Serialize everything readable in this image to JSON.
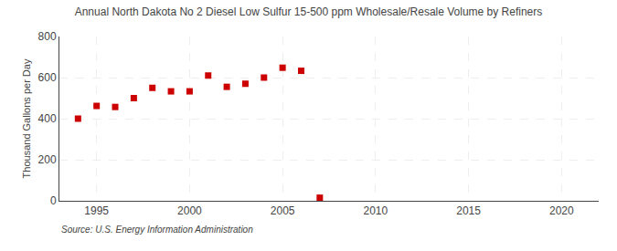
{
  "chart_data": {
    "type": "scatter",
    "title": "Annual North Dakota No 2 Diesel Low Sulfur 15-500 ppm Wholesale/Resale Volume by Refiners",
    "ylabel": "Thousand Gallons per Day",
    "x": [
      1994,
      1995,
      1996,
      1997,
      1998,
      1999,
      2000,
      2001,
      2002,
      2003,
      2004,
      2005,
      2006,
      2007
    ],
    "values": [
      400,
      462,
      457,
      500,
      550,
      533,
      533,
      610,
      555,
      570,
      600,
      648,
      633,
      15
    ],
    "color": "#cc0000",
    "marker": "square",
    "xlim": [
      1993,
      2022
    ],
    "ylim": [
      0,
      800
    ],
    "xticks": [
      1995,
      2000,
      2005,
      2010,
      2015,
      2020
    ],
    "yticks": [
      0,
      200,
      400,
      600,
      800
    ],
    "grid": true,
    "annotations": [
      "Source: U.S. Energy Information Administration"
    ]
  }
}
